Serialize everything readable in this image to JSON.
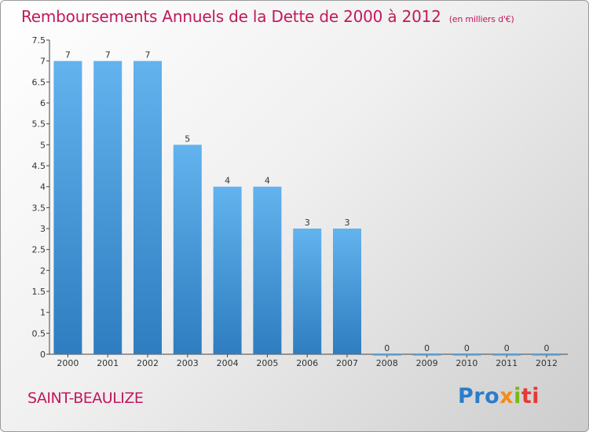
{
  "chart_data": {
    "type": "bar",
    "title": "Remboursements Annuels de la Dette de 2000 à 2012",
    "unit_note": "(en milliers d'€)",
    "categories": [
      "2000",
      "2001",
      "2002",
      "2003",
      "2004",
      "2005",
      "2006",
      "2007",
      "2008",
      "2009",
      "2010",
      "2011",
      "2012"
    ],
    "values": [
      7,
      7,
      7,
      5,
      4,
      4,
      3,
      3,
      0,
      0,
      0,
      0,
      0
    ],
    "ylim": [
      0,
      7.5
    ],
    "yticks": [
      "0",
      "0.5",
      "1",
      "1.5",
      "2",
      "2.5",
      "3",
      "3.5",
      "4",
      "4.5",
      "5",
      "5.5",
      "6",
      "6.5",
      "7",
      "7.5"
    ],
    "grid": false,
    "bar_color": "#4a9fdf"
  },
  "commune": "SAINT-BEAULIZE",
  "logo": {
    "p1": "Pro",
    "p2": "x",
    "p3": "i",
    "p4": "ti"
  }
}
